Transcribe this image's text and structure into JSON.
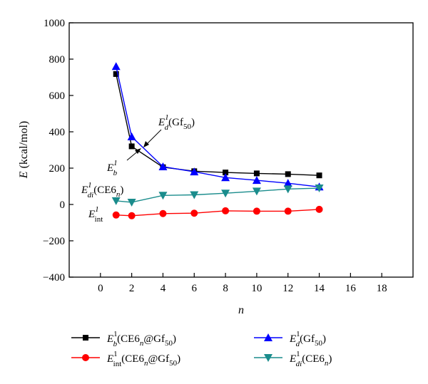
{
  "chart_data": {
    "type": "line",
    "title": "",
    "xlabel": "n",
    "ylabel": "E (kcal/mol)",
    "xlim": [
      -2,
      20
    ],
    "ylim": [
      -400,
      1000
    ],
    "x_ticks": [
      0,
      2,
      4,
      6,
      8,
      10,
      12,
      14,
      16,
      18
    ],
    "y_ticks": [
      -400,
      -200,
      0,
      200,
      400,
      600,
      800,
      1000
    ],
    "x_tick_labels": [
      "0",
      "2",
      "4",
      "6",
      "8",
      "10",
      "12",
      "14",
      "16",
      "18"
    ],
    "y_tick_labels": [
      "−400",
      "−200",
      "0",
      "200",
      "400",
      "600",
      "800",
      "1000"
    ],
    "grid": false,
    "legend_position": "bottom",
    "series": [
      {
        "key": "eb",
        "name": "E_b^1(CE6_n@Gf_50)",
        "color": "#000000",
        "marker": "square",
        "x": [
          1,
          2,
          4,
          6,
          8,
          10,
          12,
          14
        ],
        "y": [
          718,
          320,
          205,
          183,
          176,
          171,
          167,
          160
        ]
      },
      {
        "key": "eint",
        "name": "E_int^1(CE6_n@Gf_50)",
        "color": "#ff0000",
        "marker": "circle",
        "x": [
          1,
          2,
          4,
          6,
          8,
          10,
          12,
          14
        ],
        "y": [
          -58,
          -62,
          -50,
          -48,
          -35,
          -37,
          -37,
          -27
        ]
      },
      {
        "key": "ed",
        "name": "E_d^1(Gf_50)",
        "color": "#0000ff",
        "marker": "triangle-up",
        "x": [
          1,
          2,
          4,
          6,
          8,
          10,
          12,
          14
        ],
        "y": [
          760,
          373,
          208,
          180,
          148,
          133,
          117,
          97
        ]
      },
      {
        "key": "edi",
        "name": "E_di^1(CE6_n)",
        "color": "#1a8c8c",
        "marker": "triangle-down",
        "x": [
          1,
          2,
          4,
          6,
          8,
          10,
          12,
          14
        ],
        "y": [
          20,
          12,
          50,
          53,
          62,
          73,
          85,
          90
        ]
      }
    ],
    "annotations": [
      {
        "key": "eb",
        "text": "E_b^1"
      },
      {
        "key": "ed",
        "text": "E_d^1(Gf_50)"
      },
      {
        "key": "edi",
        "text": "E_di^1(CE6_n)"
      },
      {
        "key": "eint",
        "text": "E_int^1"
      }
    ]
  },
  "text": {
    "ylabel_main": "E",
    "ylabel_unit": " (kcal/mol)",
    "xlabel": "n",
    "ann_eb_main": "E",
    "ann_eb_sup": "1",
    "ann_eb_sub": "b",
    "ann_ed_main": "E",
    "ann_ed_sup": "1",
    "ann_ed_sub": "d",
    "ann_ed_paren": "(Gf",
    "ann_ed_paren_sub": "50",
    "ann_ed_close": ")",
    "ann_edi_main": "E",
    "ann_edi_sup": "1",
    "ann_edi_sub": "di",
    "ann_edi_paren": "(CE6",
    "ann_edi_paren_sub": "n",
    "ann_edi_close": ")",
    "ann_eint_main": "E",
    "ann_eint_sup": "1",
    "ann_eint_sub": "int",
    "leg_eb_main": "E",
    "leg_eb_sup": "1",
    "leg_eb_sub": "b",
    "leg_eb_a": "(CE6",
    "leg_eb_n": "n",
    "leg_eb_b": "@Gf",
    "leg_eb_50": "50",
    "leg_eb_c": ")",
    "leg_eint_main": "E",
    "leg_eint_sup": "1",
    "leg_eint_sub": "int",
    "leg_eint_a": "(CE6",
    "leg_eint_n": "n",
    "leg_eint_b": "@Gf",
    "leg_eint_50": "50",
    "leg_eint_c": ")",
    "leg_ed_main": "E",
    "leg_ed_sup": "1",
    "leg_ed_sub": "d",
    "leg_ed_a": "(Gf",
    "leg_ed_50": "50",
    "leg_ed_c": ")",
    "leg_edi_main": "E",
    "leg_edi_sup": "1",
    "leg_edi_sub": "di",
    "leg_edi_a": "(CE6",
    "leg_edi_n": "n",
    "leg_edi_c": ")"
  }
}
